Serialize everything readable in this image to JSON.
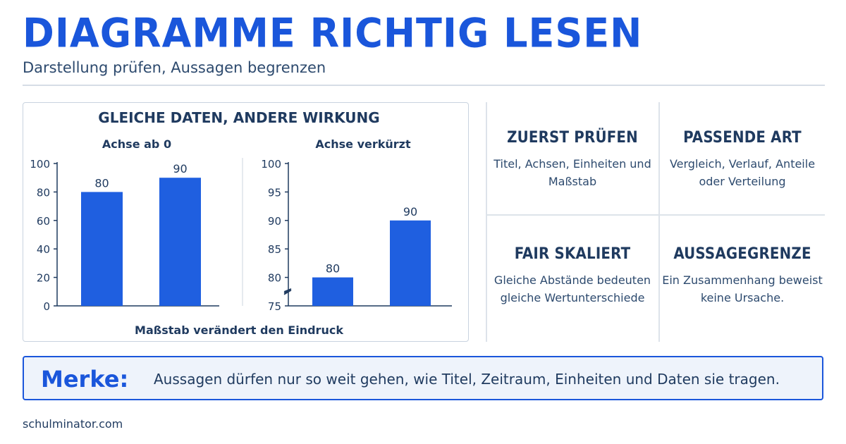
{
  "header": {
    "title": "DIAGRAMME RICHTIG LESEN",
    "subtitle": "Darstellung prüfen, Aussagen begrenzen"
  },
  "chart_panel": {
    "heading": "GLEICHE DATEN, ANDERE WIRKUNG",
    "caption": "Maßstab verändert den Eindruck"
  },
  "chart_data": [
    {
      "type": "bar",
      "title": "Achse ab 0",
      "categories": [
        "",
        ""
      ],
      "values": [
        80,
        90
      ],
      "ylim": [
        0,
        100
      ],
      "yticks": [
        0,
        20,
        40,
        60,
        80,
        100
      ],
      "axis_break": false,
      "bar_color": "#1f5fe0"
    },
    {
      "type": "bar",
      "title": "Achse verkürzt",
      "categories": [
        "",
        ""
      ],
      "values": [
        80,
        90
      ],
      "ylim": [
        75,
        100
      ],
      "yticks": [
        75,
        80,
        85,
        90,
        95,
        100
      ],
      "axis_break": true,
      "bar_color": "#1f5fe0"
    }
  ],
  "tips": [
    {
      "heading": "ZUERST PRÜFEN",
      "body": "Titel, Achsen, Einheiten und Maßstab"
    },
    {
      "heading": "PASSENDE ART",
      "body": "Vergleich, Verlauf, Anteile oder Verteilung"
    },
    {
      "heading": "FAIR SKALIERT",
      "body": "Gleiche Abstände bedeuten gleiche Wertunterschiede"
    },
    {
      "heading": "AUSSAGEGRENZE",
      "body": "Ein Zusammenhang beweist keine Ursache."
    }
  ],
  "merke": {
    "label": "Merke:",
    "text": "Aussagen dürfen nur so weit gehen, wie Titel, Zeitraum, Einheiten und Daten sie tragen."
  },
  "footer": {
    "site": "schulminator.com"
  },
  "colors": {
    "accent": "#1a56db",
    "text": "#1f3a5f",
    "bar": "#1f5fe0"
  }
}
